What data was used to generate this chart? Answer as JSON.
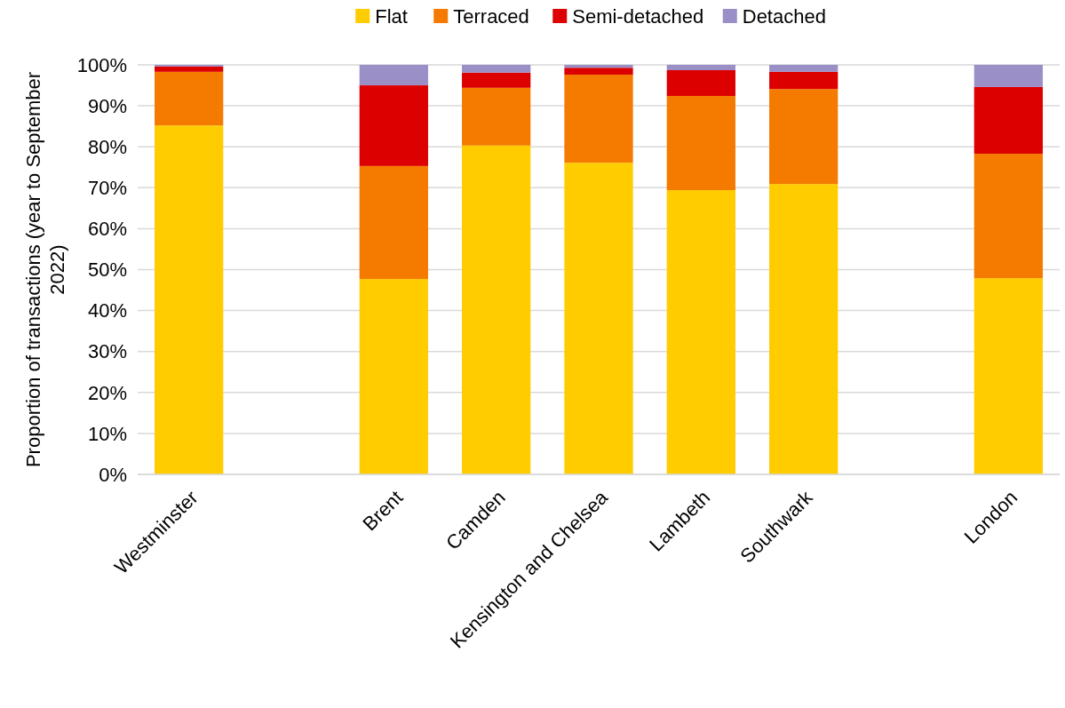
{
  "chart_data": {
    "type": "bar",
    "stacked": true,
    "ylabel": "Proportion of transactions (year to September 2022)",
    "categories": [
      "Westminster",
      null,
      "Brent",
      "Camden",
      "Kensington and Chelsea",
      "Lambeth",
      "Southwark",
      null,
      "London"
    ],
    "series": [
      {
        "name": "Flat",
        "color": "#ffcc00",
        "values": [
          85.2,
          null,
          47.7,
          80.3,
          76.1,
          69.4,
          70.9,
          null,
          47.9
        ]
      },
      {
        "name": "Terraced",
        "color": "#f47b00",
        "values": [
          13.1,
          null,
          27.6,
          14.1,
          21.5,
          23.0,
          23.2,
          null,
          30.4
        ]
      },
      {
        "name": "Semi-detached",
        "color": "#dd0000",
        "values": [
          1.3,
          null,
          19.7,
          3.7,
          1.7,
          6.3,
          4.2,
          null,
          16.3
        ]
      },
      {
        "name": "Detached",
        "color": "#9b8fc8",
        "values": [
          0.4,
          null,
          5.0,
          1.9,
          0.7,
          1.3,
          1.7,
          null,
          5.4
        ]
      }
    ],
    "ylim": [
      0,
      100
    ],
    "yticks": [
      {
        "value": 0,
        "label": "0%"
      },
      {
        "value": 10,
        "label": "10%"
      },
      {
        "value": 20,
        "label": "20%"
      },
      {
        "value": 30,
        "label": "30%"
      },
      {
        "value": 40,
        "label": "40%"
      },
      {
        "value": 50,
        "label": "50%"
      },
      {
        "value": 60,
        "label": "60%"
      },
      {
        "value": 70,
        "label": "70%"
      },
      {
        "value": 80,
        "label": "80%"
      },
      {
        "value": 90,
        "label": "90%"
      },
      {
        "value": 100,
        "label": "100%"
      }
    ],
    "grid": "y",
    "legend": "top"
  }
}
